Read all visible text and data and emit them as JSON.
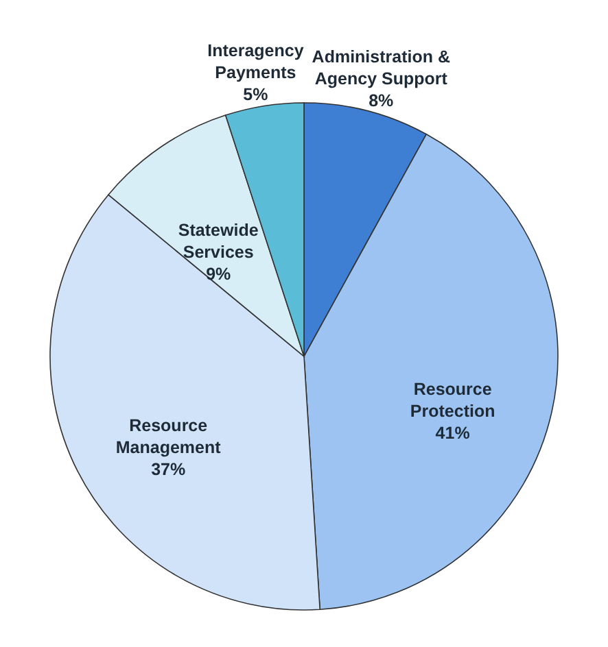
{
  "chart_data": {
    "type": "pie",
    "categories": [
      "Administration & Agency Support",
      "Resource Protection",
      "Resource Management",
      "Statewide Services",
      "Interagency Payments"
    ],
    "values": [
      8,
      41,
      37,
      9,
      5
    ],
    "value_labels": [
      "8%",
      "41%",
      "37%",
      "9%",
      "5%"
    ],
    "colors": [
      "#3e7fd3",
      "#9cc3f1",
      "#d0e3f9",
      "#d7eef6",
      "#5bbcd8"
    ],
    "legend": false
  }
}
